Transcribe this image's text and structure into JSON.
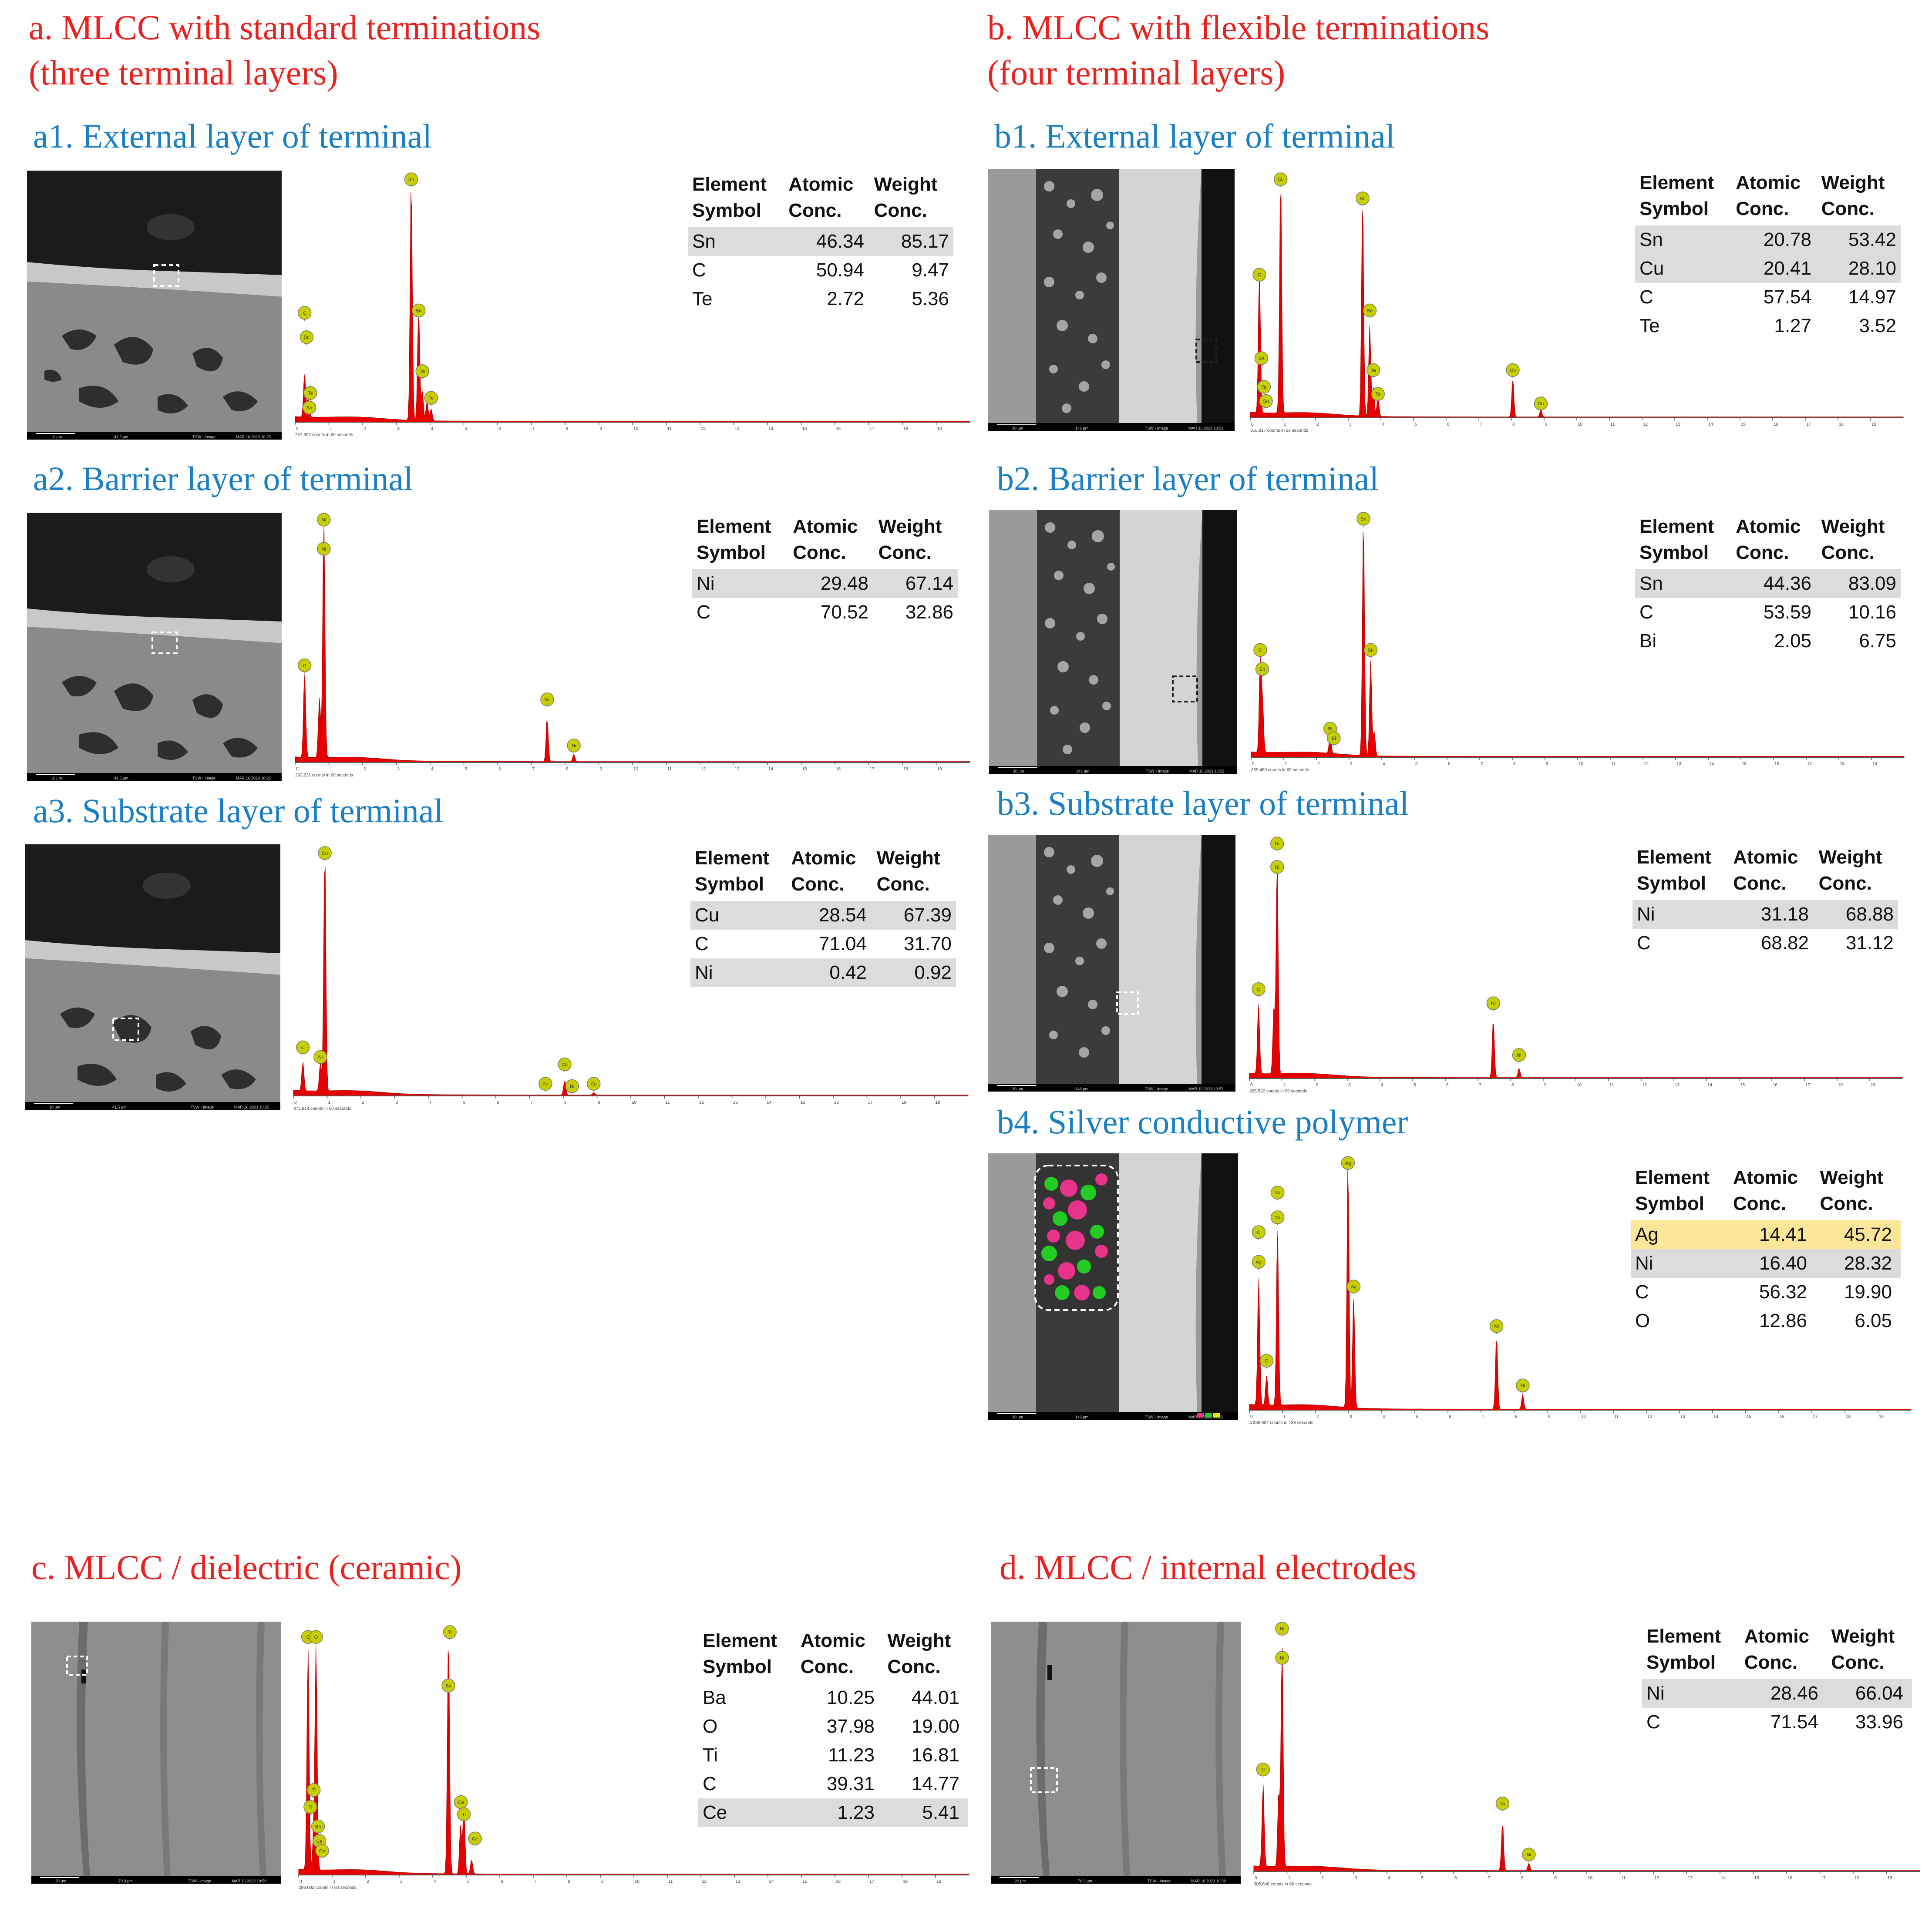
{
  "headings": {
    "a": "a.   MLCC with standard terminations\n(three terminal layers)",
    "b": "b. MLCC with flexible terminations\n(four terminal layers)",
    "c": "c. MLCC / dielectric (ceramic)",
    "d": "d. MLCC / internal electrodes"
  },
  "table_headers": {
    "col1": "Element\nSymbol",
    "col2": "Atomic\nConc.",
    "col3": "Weight\nConc."
  },
  "colors": {
    "heading": "#e8221f",
    "panel_title": "#1a7fc4",
    "spectrum_fill": "#e60000",
    "marker": "#c8cf00",
    "highlight_row": "#dcdcdc",
    "ag_row": "#fde59a"
  },
  "panels": [
    {
      "id": "a1",
      "title": "a1. External layer of terminal",
      "sem": {
        "scale_bar": "10 µm",
        "hfw": "41.5 µm",
        "mode": "TSW - Image",
        "date": "MAR 16 2023 10:25"
      },
      "counts": "257,997 counts in 60 seconds",
      "rows": [
        {
          "el": "Sn",
          "at": "46.34",
          "wt": "85.17",
          "hl": true
        },
        {
          "el": "C",
          "at": "50.94",
          "wt": "9.47"
        },
        {
          "el": "Te",
          "at": "2.72",
          "wt": "5.36"
        }
      ]
    },
    {
      "id": "a2",
      "title": "a2. Barrier layer of terminal",
      "sem": {
        "scale_bar": "10 µm",
        "hfw": "41.5 µm",
        "mode": "TSW - Image",
        "date": "MAR 16 2023 10:25"
      },
      "counts": "292,231 counts in 60 seconds",
      "rows": [
        {
          "el": "Ni",
          "at": "29.48",
          "wt": "67.14",
          "hl": true
        },
        {
          "el": "C",
          "at": "70.52",
          "wt": "32.86"
        }
      ]
    },
    {
      "id": "a3",
      "title": "a3. Substrate layer of terminal",
      "sem": {
        "scale_bar": "10 µm",
        "hfw": "41.5 µm",
        "mode": "TSW - Image",
        "date": "MAR 16 2023 10:25"
      },
      "counts": "372,814 counts in 60 seconds",
      "rows": [
        {
          "el": "Cu",
          "at": "28.54",
          "wt": "67.39",
          "hl": true
        },
        {
          "el": "C",
          "at": "71.04",
          "wt": "31.70"
        },
        {
          "el": "Ni",
          "at": "0.42",
          "wt": "0.92",
          "hl": true
        }
      ]
    },
    {
      "id": "b1",
      "title": "b1. External layer of terminal",
      "sem": {
        "scale_bar": "30 µm",
        "hfw": "146 µm",
        "mode": "TSW - Image",
        "date": "MAR 16 2023 10:52"
      },
      "counts": "310,817 counts in 60 seconds",
      "rows": [
        {
          "el": "Sn",
          "at": "20.78",
          "wt": "53.42",
          "hl": true
        },
        {
          "el": "Cu",
          "at": "20.41",
          "wt": "28.10",
          "hl": true
        },
        {
          "el": "C",
          "at": "57.54",
          "wt": "14.97"
        },
        {
          "el": "Te",
          "at": "1.27",
          "wt": "3.52"
        }
      ]
    },
    {
      "id": "b2",
      "title": "b2. Barrier layer of terminal",
      "sem": {
        "scale_bar": "30 µm",
        "hfw": "146 µm",
        "mode": "TSW - Image",
        "date": "MAR 16 2023 10:52"
      },
      "counts": "359,480 counts in 60 seconds",
      "rows": [
        {
          "el": "Sn",
          "at": "44.36",
          "wt": "83.09",
          "hl": true
        },
        {
          "el": "C",
          "at": "53.59",
          "wt": "10.16"
        },
        {
          "el": "Bi",
          "at": "2.05",
          "wt": "6.75"
        }
      ]
    },
    {
      "id": "b3",
      "title": "b3. Substrate layer of terminal",
      "sem": {
        "scale_bar": "30 µm",
        "hfw": "146 µm",
        "mode": "TSW - Image",
        "date": "MAR 16 2023 10:52"
      },
      "counts": "295,522 counts in 60 seconds",
      "rows": [
        {
          "el": "Ni",
          "at": "31.18",
          "wt": "68.88",
          "hl": true
        },
        {
          "el": "C",
          "at": "68.82",
          "wt": "31.12"
        }
      ]
    },
    {
      "id": "b4",
      "title": "b4. Silver conductive polymer",
      "sem": {
        "scale_bar": "30 µm",
        "hfw": "146 µm",
        "mode": "TSW - Image",
        "date": "MAR 16 2023 10:52"
      },
      "counts": "4,859,802 counts in 138 seconds",
      "rows": [
        {
          "el": "Ag",
          "at": "14.41",
          "wt": "45.72",
          "ag": true
        },
        {
          "el": "Ni",
          "at": "16.40",
          "wt": "28.32",
          "hl": true
        },
        {
          "el": "C",
          "at": "56.32",
          "wt": "19.90"
        },
        {
          "el": "O",
          "at": "12.86",
          "wt": "6.05"
        }
      ]
    },
    {
      "id": "c",
      "title": "",
      "sem": {
        "scale_bar": "20 µm",
        "hfw": "70.3 µm",
        "mode": "TSW - Image",
        "date": "MAR 16 2023 10:59"
      },
      "counts": "286,002 counts in 60 seconds",
      "rows": [
        {
          "el": "Ba",
          "at": "10.25",
          "wt": "44.01"
        },
        {
          "el": "O",
          "at": "37.98",
          "wt": "19.00"
        },
        {
          "el": "Ti",
          "at": "11.23",
          "wt": "16.81"
        },
        {
          "el": "C",
          "at": "39.31",
          "wt": "14.77"
        },
        {
          "el": "Ce",
          "at": "1.23",
          "wt": "5.41",
          "hl": true
        }
      ]
    },
    {
      "id": "d",
      "title": "",
      "sem": {
        "scale_bar": "20 µm",
        "hfw": "70.3 µm",
        "mode": "TSW - Image",
        "date": "MAR 16 2023 10:59"
      },
      "counts": "305,646 counts in 60 seconds",
      "rows": [
        {
          "el": "Ni",
          "at": "28.46",
          "wt": "66.04",
          "hl": true
        },
        {
          "el": "C",
          "at": "71.54",
          "wt": "33.96"
        }
      ]
    }
  ],
  "chart_data": [
    {
      "id": "a1",
      "type": "area",
      "xlabel": "",
      "ylabel": "",
      "xlim": [
        0,
        20
      ],
      "x_ticks": [
        0,
        1,
        2,
        3,
        4,
        5,
        6,
        7,
        8,
        9,
        10,
        11,
        12,
        13,
        14,
        15,
        16,
        17,
        18,
        19
      ],
      "peaks": [
        {
          "x": 0.28,
          "h": 0.18
        },
        {
          "x": 0.39,
          "h": 0.08
        },
        {
          "x": 3.44,
          "h": 1.0
        },
        {
          "x": 3.66,
          "h": 0.48
        },
        {
          "x": 3.77,
          "h": 0.12
        },
        {
          "x": 3.91,
          "h": 0.08
        },
        {
          "x": 4.03,
          "h": 0.05
        }
      ],
      "markers": [
        {
          "label": "C",
          "x": 0.28,
          "h": 0.45
        },
        {
          "label": "Sn",
          "x": 0.34,
          "h": 0.35
        },
        {
          "label": "Te",
          "x": 0.45,
          "h": 0.12
        },
        {
          "label": "Sn",
          "x": 0.42,
          "h": 0.06
        },
        {
          "label": "Sn",
          "x": 3.44,
          "h": 1.0
        },
        {
          "label": "Sn",
          "x": 3.66,
          "h": 0.46
        },
        {
          "label": "Te",
          "x": 3.77,
          "h": 0.21
        },
        {
          "label": "Te",
          "x": 4.03,
          "h": 0.1
        }
      ]
    },
    {
      "id": "a2",
      "type": "area",
      "xlim": [
        0,
        20
      ],
      "x_ticks": [
        0,
        1,
        2,
        3,
        4,
        5,
        6,
        7,
        8,
        9,
        10,
        11,
        12,
        13,
        14,
        15,
        16,
        17,
        18,
        19
      ],
      "peaks": [
        {
          "x": 0.28,
          "h": 0.35
        },
        {
          "x": 0.85,
          "h": 1.0
        },
        {
          "x": 0.72,
          "h": 0.25
        },
        {
          "x": 7.47,
          "h": 0.18
        },
        {
          "x": 8.26,
          "h": 0.03
        }
      ],
      "markers": [
        {
          "label": "C",
          "x": 0.28,
          "h": 0.4
        },
        {
          "label": "Ni",
          "x": 0.85,
          "h": 1.0
        },
        {
          "label": "Ni",
          "x": 0.85,
          "h": 0.88
        },
        {
          "label": "Ni",
          "x": 7.47,
          "h": 0.26
        },
        {
          "label": "Ni",
          "x": 8.26,
          "h": 0.07
        }
      ]
    },
    {
      "id": "a3",
      "type": "area",
      "xlim": [
        0,
        20
      ],
      "x_ticks": [
        0,
        1,
        2,
        3,
        4,
        5,
        6,
        7,
        8,
        9,
        10,
        11,
        12,
        13,
        14,
        15,
        16,
        17,
        18,
        19
      ],
      "peaks": [
        {
          "x": 0.28,
          "h": 0.12
        },
        {
          "x": 0.8,
          "h": 0.12
        },
        {
          "x": 0.93,
          "h": 1.0
        },
        {
          "x": 8.04,
          "h": 0.06
        },
        {
          "x": 8.9,
          "h": 0.01
        }
      ],
      "markers": [
        {
          "label": "Cu",
          "x": 0.93,
          "h": 1.0
        },
        {
          "label": "C",
          "x": 0.28,
          "h": 0.2
        },
        {
          "label": "Ni",
          "x": 0.8,
          "h": 0.16
        },
        {
          "label": "Ni",
          "x": 7.47,
          "h": 0.05
        },
        {
          "label": "Cu",
          "x": 8.04,
          "h": 0.13
        },
        {
          "label": "Ni",
          "x": 8.26,
          "h": 0.04
        },
        {
          "label": "Cu",
          "x": 8.9,
          "h": 0.05
        }
      ]
    },
    {
      "id": "b1",
      "type": "area",
      "xlim": [
        0,
        20
      ],
      "x_ticks": [
        0,
        1,
        2,
        3,
        4,
        5,
        6,
        7,
        8,
        9,
        10,
        11,
        12,
        13,
        14,
        15,
        16,
        17,
        18,
        19
      ],
      "peaks": [
        {
          "x": 0.28,
          "h": 0.6
        },
        {
          "x": 0.93,
          "h": 1.0
        },
        {
          "x": 3.44,
          "h": 0.92
        },
        {
          "x": 3.66,
          "h": 0.38
        },
        {
          "x": 3.77,
          "h": 0.12
        },
        {
          "x": 3.91,
          "h": 0.08
        },
        {
          "x": 8.04,
          "h": 0.16
        },
        {
          "x": 8.9,
          "h": 0.03
        }
      ],
      "markers": [
        {
          "label": "C",
          "x": 0.28,
          "h": 0.6
        },
        {
          "label": "Cu",
          "x": 0.93,
          "h": 1.0
        },
        {
          "label": "Sn",
          "x": 0.34,
          "h": 0.25
        },
        {
          "label": "Te",
          "x": 0.42,
          "h": 0.13
        },
        {
          "label": "Sn",
          "x": 0.48,
          "h": 0.07
        },
        {
          "label": "Sn",
          "x": 3.44,
          "h": 0.92
        },
        {
          "label": "Sn",
          "x": 3.66,
          "h": 0.45
        },
        {
          "label": "Te",
          "x": 3.77,
          "h": 0.2
        },
        {
          "label": "Te",
          "x": 3.91,
          "h": 0.1
        },
        {
          "label": "Cu",
          "x": 8.04,
          "h": 0.2
        },
        {
          "label": "Cu",
          "x": 8.9,
          "h": 0.06
        }
      ]
    },
    {
      "id": "b2",
      "type": "area",
      "xlim": [
        0,
        20
      ],
      "x_ticks": [
        0,
        1,
        2,
        3,
        4,
        5,
        6,
        7,
        8,
        9,
        10,
        11,
        12,
        13,
        14,
        15,
        16,
        17,
        18,
        19
      ],
      "peaks": [
        {
          "x": 0.28,
          "h": 0.4
        },
        {
          "x": 0.35,
          "h": 0.2
        },
        {
          "x": 2.42,
          "h": 0.08
        },
        {
          "x": 3.44,
          "h": 1.0
        },
        {
          "x": 3.66,
          "h": 0.4
        },
        {
          "x": 3.77,
          "h": 0.1
        }
      ],
      "markers": [
        {
          "label": "C",
          "x": 0.28,
          "h": 0.45
        },
        {
          "label": "Sn",
          "x": 0.34,
          "h": 0.37
        },
        {
          "label": "Bi",
          "x": 2.42,
          "h": 0.12
        },
        {
          "label": "Bi",
          "x": 2.53,
          "h": 0.08
        },
        {
          "label": "Sn",
          "x": 3.44,
          "h": 1.0
        },
        {
          "label": "Sn",
          "x": 3.66,
          "h": 0.45
        }
      ]
    },
    {
      "id": "b3",
      "type": "area",
      "xlim": [
        0,
        20
      ],
      "x_ticks": [
        0,
        1,
        2,
        3,
        4,
        5,
        6,
        7,
        8,
        9,
        10,
        11,
        12,
        13,
        14,
        15,
        16,
        17,
        18,
        19
      ],
      "peaks": [
        {
          "x": 0.28,
          "h": 0.3
        },
        {
          "x": 0.75,
          "h": 0.28
        },
        {
          "x": 0.85,
          "h": 0.92
        },
        {
          "x": 7.47,
          "h": 0.25
        },
        {
          "x": 8.26,
          "h": 0.04
        }
      ],
      "markers": [
        {
          "label": "Ni",
          "x": 0.85,
          "h": 1.0
        },
        {
          "label": "Ni",
          "x": 0.85,
          "h": 0.9
        },
        {
          "label": "C",
          "x": 0.28,
          "h": 0.38
        },
        {
          "label": "Ni",
          "x": 7.47,
          "h": 0.32
        },
        {
          "label": "Ni",
          "x": 8.26,
          "h": 0.1
        }
      ]
    },
    {
      "id": "b4",
      "type": "area",
      "xlim": [
        0,
        20
      ],
      "x_ticks": [
        0,
        1,
        2,
        3,
        4,
        5,
        6,
        7,
        8,
        9,
        10,
        11,
        12,
        13,
        14,
        15,
        16,
        17,
        18,
        19
      ],
      "peaks": [
        {
          "x": 0.28,
          "h": 0.52
        },
        {
          "x": 0.52,
          "h": 0.12
        },
        {
          "x": 0.85,
          "h": 0.72
        },
        {
          "x": 2.98,
          "h": 1.0
        },
        {
          "x": 3.15,
          "h": 0.45
        },
        {
          "x": 7.47,
          "h": 0.3
        },
        {
          "x": 8.26,
          "h": 0.06
        }
      ],
      "markers": [
        {
          "label": "Ag",
          "x": 2.98,
          "h": 1.0
        },
        {
          "label": "Ni",
          "x": 0.85,
          "h": 0.88
        },
        {
          "label": "C",
          "x": 0.28,
          "h": 0.72
        },
        {
          "label": "Ni",
          "x": 0.85,
          "h": 0.78
        },
        {
          "label": "Ag",
          "x": 0.28,
          "h": 0.6
        },
        {
          "label": "Ag",
          "x": 3.15,
          "h": 0.5
        },
        {
          "label": "O",
          "x": 0.52,
          "h": 0.2
        },
        {
          "label": "Ni",
          "x": 7.47,
          "h": 0.34
        },
        {
          "label": "Ni",
          "x": 8.26,
          "h": 0.1
        }
      ]
    },
    {
      "id": "c",
      "type": "area",
      "xlim": [
        0,
        20
      ],
      "x_ticks": [
        0,
        1,
        2,
        3,
        4,
        5,
        6,
        7,
        8,
        9,
        10,
        11,
        12,
        13,
        14,
        15,
        16,
        17,
        18,
        19
      ],
      "peaks": [
        {
          "x": 0.28,
          "h": 0.92
        },
        {
          "x": 0.52,
          "h": 0.92
        },
        {
          "x": 0.45,
          "h": 0.15
        },
        {
          "x": 4.47,
          "h": 1.0
        },
        {
          "x": 4.83,
          "h": 0.2
        },
        {
          "x": 4.93,
          "h": 0.28
        },
        {
          "x": 5.16,
          "h": 0.06
        }
      ],
      "markers": [
        {
          "label": "C",
          "x": 0.28,
          "h": 0.98
        },
        {
          "label": "O",
          "x": 0.52,
          "h": 0.98
        },
        {
          "label": "Ti",
          "x": 0.45,
          "h": 0.35
        },
        {
          "label": "Ti",
          "x": 0.35,
          "h": 0.28
        },
        {
          "label": "Ba",
          "x": 0.58,
          "h": 0.2
        },
        {
          "label": "Ce",
          "x": 0.62,
          "h": 0.14
        },
        {
          "label": "Ce",
          "x": 0.7,
          "h": 0.1
        },
        {
          "label": "Ti",
          "x": 4.51,
          "h": 1.0
        },
        {
          "label": "Ba",
          "x": 4.47,
          "h": 0.78
        },
        {
          "label": "Ce",
          "x": 4.84,
          "h": 0.3
        },
        {
          "label": "Ti",
          "x": 4.93,
          "h": 0.25
        },
        {
          "label": "Ce",
          "x": 5.26,
          "h": 0.15
        }
      ]
    },
    {
      "id": "d",
      "type": "area",
      "xlim": [
        0,
        20
      ],
      "x_ticks": [
        0,
        1,
        2,
        3,
        4,
        5,
        6,
        7,
        8,
        9,
        10,
        11,
        12,
        13,
        14,
        15,
        16,
        17,
        18,
        19
      ],
      "peaks": [
        {
          "x": 0.28,
          "h": 0.34
        },
        {
          "x": 0.75,
          "h": 0.3
        },
        {
          "x": 0.85,
          "h": 0.92
        },
        {
          "x": 7.47,
          "h": 0.2
        },
        {
          "x": 8.26,
          "h": 0.03
        }
      ],
      "markers": [
        {
          "label": "Ni",
          "x": 0.85,
          "h": 1.0
        },
        {
          "label": "Ni",
          "x": 0.85,
          "h": 0.88
        },
        {
          "label": "C",
          "x": 0.28,
          "h": 0.42
        },
        {
          "label": "Ni",
          "x": 7.47,
          "h": 0.28
        },
        {
          "label": "Ni",
          "x": 8.26,
          "h": 0.07
        }
      ]
    }
  ]
}
